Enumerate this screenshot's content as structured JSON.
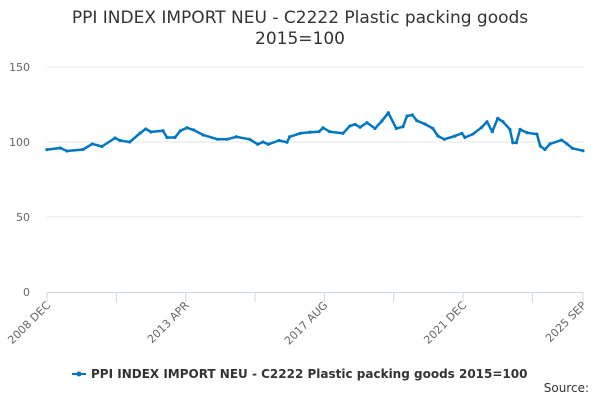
{
  "chart_data": {
    "type": "line",
    "title_line1": "PPI INDEX IMPORT NEU - C2222 Plastic packing goods",
    "title_line2": "2015=100",
    "x_unit": "months since 2008 DEC",
    "x_ticks": [
      {
        "month": 0,
        "label": "2008 DEC"
      },
      {
        "month": 52,
        "label": "2013 APR"
      },
      {
        "month": 104,
        "label": "2017 AUG"
      },
      {
        "month": 156,
        "label": "2021 DEC"
      },
      {
        "month": 201,
        "label": "2025 SEP"
      }
    ],
    "x_minor_ticks": [
      26,
      78,
      130,
      182
    ],
    "y_ticks": [
      0,
      50,
      100,
      150
    ],
    "ylim": [
      0,
      150
    ],
    "xlim": [
      0,
      201
    ],
    "grid": true,
    "legend_position": "bottom",
    "series": [
      {
        "name": "PPI INDEX IMPORT NEU - C2222 Plastic packing goods 2015=100",
        "color": "#0077c0",
        "points": [
          [
            0,
            94.9
          ],
          [
            5,
            96
          ],
          [
            7.5,
            94
          ],
          [
            13.5,
            95
          ],
          [
            17,
            98.7
          ],
          [
            20.6,
            97
          ],
          [
            25.5,
            102.7
          ],
          [
            27.4,
            101
          ],
          [
            31,
            100
          ],
          [
            35,
            106
          ],
          [
            37,
            108.7
          ],
          [
            39,
            106.7
          ],
          [
            43.5,
            107.5
          ],
          [
            45,
            103
          ],
          [
            48,
            103
          ],
          [
            50,
            107.5
          ],
          [
            52.5,
            109.5
          ],
          [
            55,
            108
          ],
          [
            58.5,
            104.7
          ],
          [
            64,
            101.8
          ],
          [
            67.5,
            101.8
          ],
          [
            71,
            103.5
          ],
          [
            76,
            101.8
          ],
          [
            79,
            98.5
          ],
          [
            81,
            100
          ],
          [
            83,
            98.5
          ],
          [
            87,
            101
          ],
          [
            90,
            99.8
          ],
          [
            91,
            103.5
          ],
          [
            95,
            105.8
          ],
          [
            98.6,
            106.5
          ],
          [
            102,
            106.9
          ],
          [
            103.5,
            109.5
          ],
          [
            106,
            106.9
          ],
          [
            111,
            105.8
          ],
          [
            113.6,
            110.7
          ],
          [
            115.5,
            111.8
          ],
          [
            117.4,
            109.8
          ],
          [
            120,
            112.9
          ],
          [
            123,
            109
          ],
          [
            125.6,
            114
          ],
          [
            128,
            119.5
          ],
          [
            131,
            109
          ],
          [
            133.5,
            110.2
          ],
          [
            135,
            117.3
          ],
          [
            137,
            118
          ],
          [
            138.7,
            114.2
          ],
          [
            141.7,
            112
          ],
          [
            144.7,
            109
          ],
          [
            146.6,
            104
          ],
          [
            149,
            101.8
          ],
          [
            153,
            104
          ],
          [
            155.6,
            105.8
          ],
          [
            156.7,
            103
          ],
          [
            159.7,
            105.3
          ],
          [
            163,
            109.8
          ],
          [
            165,
            113.5
          ],
          [
            167,
            106.9
          ],
          [
            169,
            115.8
          ],
          [
            171,
            113.5
          ],
          [
            173.6,
            108.4
          ],
          [
            174.7,
            99.5
          ],
          [
            176,
            99.5
          ],
          [
            177.4,
            108.4
          ],
          [
            180,
            106.2
          ],
          [
            183.7,
            105.3
          ],
          [
            185,
            97.3
          ],
          [
            186.7,
            95
          ],
          [
            188.6,
            98.7
          ],
          [
            193,
            101.3
          ],
          [
            195,
            98.7
          ],
          [
            197,
            95.8
          ],
          [
            201,
            94.2
          ]
        ]
      }
    ]
  },
  "source_label": "Source:"
}
